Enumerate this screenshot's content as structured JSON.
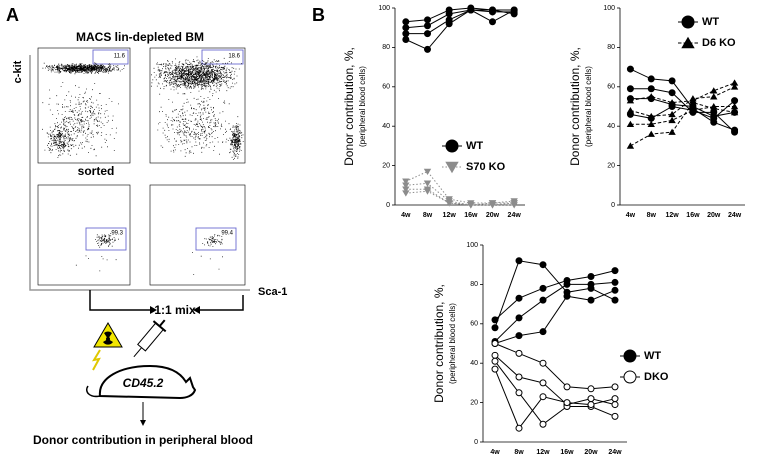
{
  "panel_a": {
    "label": "A",
    "title": "MACS lin-depleted BM",
    "y_axis": "c-kit",
    "x_axis": "Sca-1",
    "gates": [
      11.6,
      18.6,
      99.3,
      99.4
    ],
    "sorted_label": "sorted",
    "mix_label": "1:1 mix",
    "mouse_label": "CD45.2",
    "result": "Donor contribution in peripheral blood"
  },
  "panel_b_label": "B",
  "chart_data": [
    {
      "type": "line",
      "ylabel": [
        "Donor contribution, %,",
        "(peripheral blood cells)"
      ],
      "categories": [
        "4w",
        "8w",
        "12w",
        "16w",
        "20w",
        "24w"
      ],
      "ylim": [
        0,
        100
      ],
      "yticks": [
        0,
        20,
        40,
        60,
        80,
        100
      ],
      "series": [
        {
          "name": "WT",
          "color": "#000000",
          "marker": "circle",
          "dash": "solid",
          "values": [
            [
              93,
              94,
              99,
              100,
              99,
              99
            ],
            [
              90,
              91,
              97,
              99,
              98,
              98
            ],
            [
              87,
              87,
              94,
              99,
              99,
              97
            ],
            [
              84,
              79,
              92,
              99,
              93,
              99
            ]
          ]
        },
        {
          "name": "S70 KO",
          "color": "#8c8c8c",
          "marker": "triangle-down",
          "dash": "dotted",
          "values": [
            [
              12,
              17,
              3,
              1,
              1,
              2
            ],
            [
              10,
              11,
              2,
              0,
              0,
              1
            ],
            [
              8,
              8,
              1,
              0,
              1,
              1
            ],
            [
              6,
              7,
              1,
              0,
              0,
              0
            ]
          ]
        }
      ]
    },
    {
      "type": "line",
      "ylabel": [
        "Donor contribution, %,",
        "(peripheral blood cells)"
      ],
      "categories": [
        "4w",
        "8w",
        "12w",
        "16w",
        "20w",
        "24w"
      ],
      "ylim": [
        0,
        100
      ],
      "yticks": [
        0,
        20,
        40,
        60,
        80,
        100
      ],
      "series": [
        {
          "name": "WT",
          "color": "#000000",
          "marker": "circle",
          "dash": "solid",
          "values": [
            [
              69,
              64,
              63,
              49,
              42,
              38
            ],
            [
              59,
              59,
              57,
              47,
              47,
              37
            ],
            [
              54,
              54,
              51,
              50,
              45,
              47
            ],
            [
              46,
              44,
              50,
              48,
              44,
              53
            ]
          ]
        },
        {
          "name": "D6 KO",
          "color": "#000000",
          "marker": "triangle",
          "dash": "dashed",
          "values": [
            [
              53,
              55,
              52,
              53,
              58,
              62
            ],
            [
              48,
              45,
              46,
              54,
              55,
              60
            ],
            [
              41,
              41,
              43,
              48,
              50,
              50
            ],
            [
              30,
              36,
              37,
              52,
              49,
              47
            ]
          ]
        }
      ]
    },
    {
      "type": "line",
      "ylabel": [
        "Donor contribution, %,",
        "(peripheral blood cells)"
      ],
      "categories": [
        "4w",
        "8w",
        "12w",
        "16w",
        "20w",
        "24w"
      ],
      "ylim": [
        0,
        100
      ],
      "yticks": [
        0,
        20,
        40,
        60,
        80,
        100
      ],
      "series": [
        {
          "name": "WT",
          "color": "#000000",
          "marker": "circle",
          "dash": "solid",
          "values": [
            [
              58,
              92,
              90,
              76,
              78,
              72
            ],
            [
              62,
              73,
              78,
              82,
              84,
              87
            ],
            [
              51,
              63,
              72,
              80,
              80,
              81
            ],
            [
              50,
              54,
              56,
              74,
              72,
              77
            ]
          ]
        },
        {
          "name": "DKO",
          "color": "#000000",
          "marker": "circle-open",
          "dash": "solid",
          "values": [
            [
              50,
              45,
              40,
              28,
              27,
              28
            ],
            [
              44,
              33,
              30,
              19,
              22,
              19
            ],
            [
              41,
              25,
              9,
              18,
              18,
              13
            ],
            [
              37,
              7,
              23,
              20,
              19,
              22
            ]
          ]
        }
      ]
    }
  ]
}
